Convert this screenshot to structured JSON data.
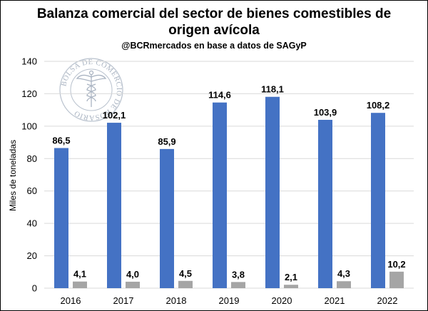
{
  "header": {
    "title": "Balanza comercial del sector de bienes comestibles de\norigen avícola",
    "subtitle": "@BCRmercados en base a datos de SAGyP"
  },
  "watermark": {
    "icon": "bolsa-de-comercio-de-rosario-seal-icon",
    "text": "BOLSA DE COMERCIO DE ROSARIO",
    "color": "#aab4c2"
  },
  "chart_data": {
    "type": "bar",
    "title": "Balanza comercial del sector de bienes comestibles de origen avícola",
    "subtitle": "@BCRmercados en base a datos de SAGyP",
    "xlabel": "",
    "ylabel": "Miles de toneladas",
    "categories": [
      "2016",
      "2017",
      "2018",
      "2019",
      "2020",
      "2021",
      "2022"
    ],
    "series": [
      {
        "values": [
          86.5,
          102.1,
          85.9,
          114.6,
          118.1,
          103.9,
          108.2
        ],
        "labels": [
          "86,5",
          "102,1",
          "85,9",
          "114,6",
          "118,1",
          "103,9",
          "108,2"
        ],
        "color": "#4472c4"
      },
      {
        "values": [
          4.1,
          4.0,
          4.5,
          3.8,
          2.1,
          4.3,
          10.2
        ],
        "labels": [
          "4,1",
          "4,0",
          "4,5",
          "3,8",
          "2,1",
          "4,3",
          "10,2"
        ],
        "color": "#a5a5a5"
      }
    ],
    "ylim": [
      0,
      140
    ],
    "yticks": [
      0,
      20,
      40,
      60,
      80,
      100,
      120,
      140
    ],
    "grid": true,
    "grid_color": "#d9d9d9",
    "legend": "none"
  }
}
